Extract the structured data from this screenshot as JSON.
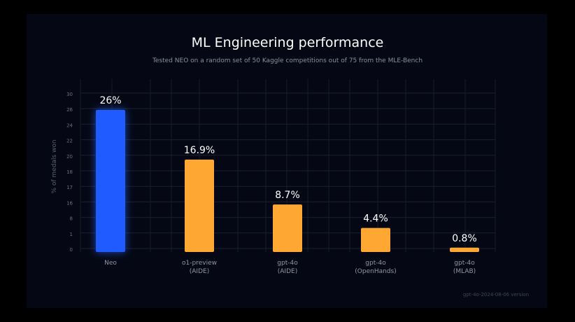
{
  "chart_data": {
    "type": "bar",
    "title": "ML Engineering performance",
    "subtitle": "Tested NEO on a random set of 50 Kaggle competitions out of 75 from the MLE-Bench",
    "ylabel": "% of medals won",
    "xlabel": "",
    "footnote": "gpt-4o-2024-08-06 version",
    "y_ticks": [
      "0",
      "1",
      "8",
      "16",
      "17",
      "18",
      "20",
      "22",
      "24",
      "26",
      "30"
    ],
    "categories": [
      [
        "Neo"
      ],
      [
        "o1-preview",
        "(AIDE)"
      ],
      [
        "gpt-4o",
        "(AIDE)"
      ],
      [
        "gpt-4o",
        "(OpenHands)"
      ],
      [
        "gpt-4o",
        "(MLAB)"
      ]
    ],
    "values": [
      26,
      16.9,
      8.7,
      4.4,
      0.8
    ],
    "value_labels": [
      "26%",
      "16.9%",
      "8.7%",
      "4.4%",
      "0.8%"
    ],
    "colors": [
      "#1f5bff",
      "#ffa733",
      "#ffa733",
      "#ffa733",
      "#ffa733"
    ],
    "grid": true,
    "legend": "none"
  }
}
